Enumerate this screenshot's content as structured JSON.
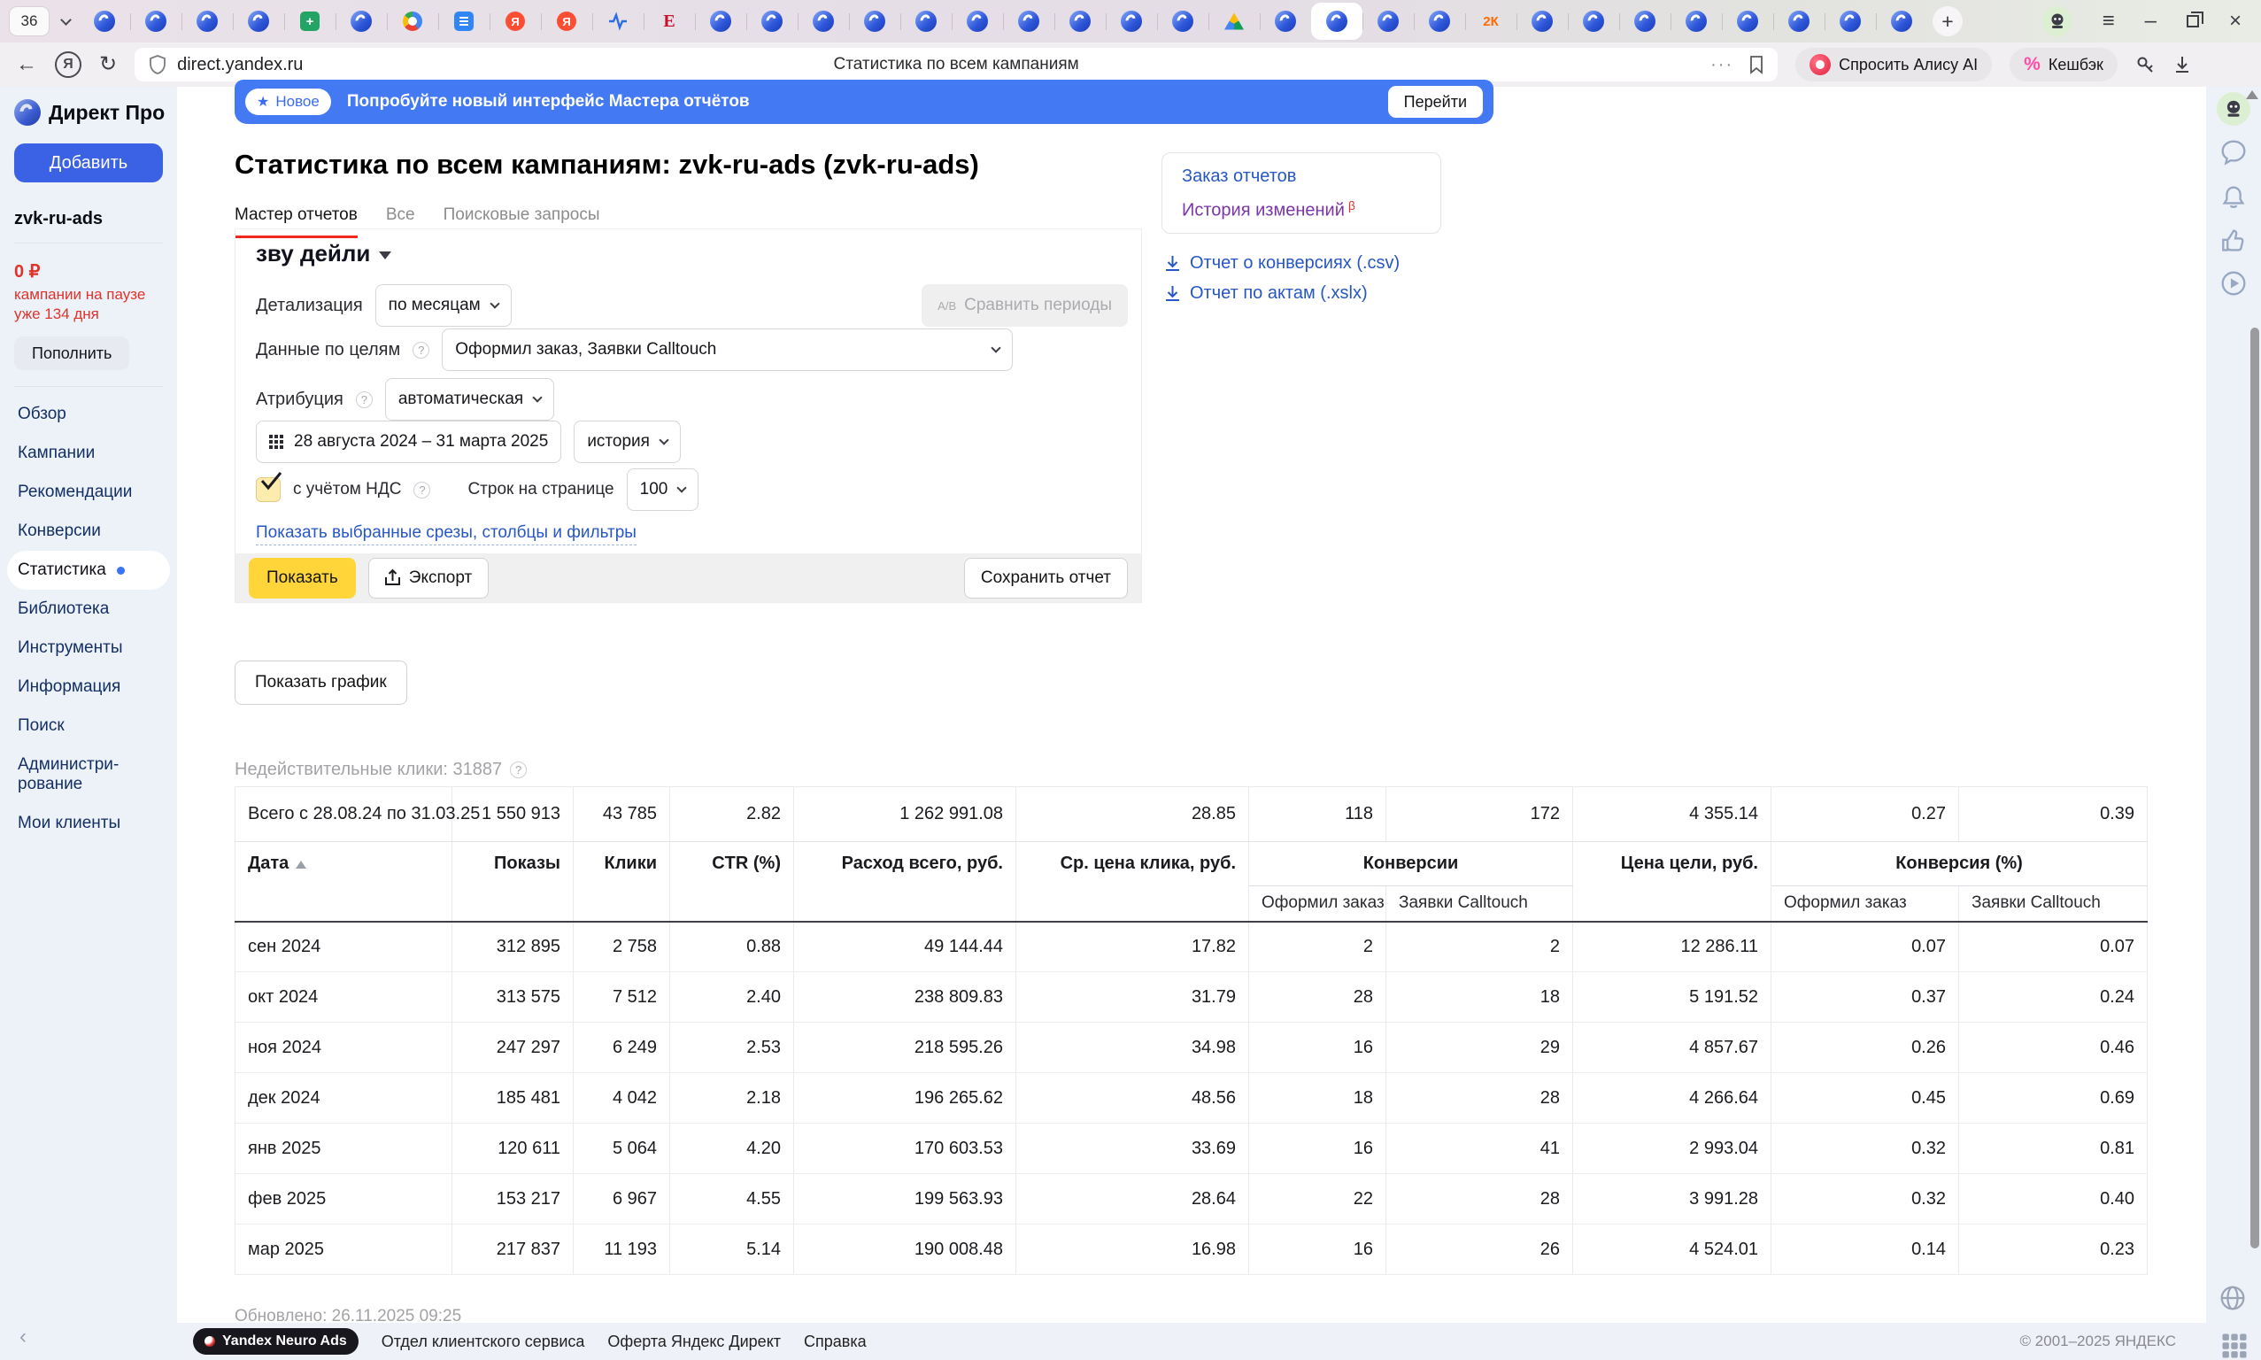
{
  "browser": {
    "tab_count": "36",
    "active_tab_index": 24,
    "tabs": [
      "yb",
      "yb",
      "yb",
      "yb",
      "sheets",
      "yb",
      "chrome",
      "docs",
      "ya",
      "ya",
      "pulse",
      "e",
      "yb",
      "yb",
      "yb",
      "yb",
      "yb",
      "yb",
      "yb",
      "yb",
      "yb",
      "yb",
      "drive",
      "yb",
      "yb",
      "yb",
      "yb",
      "2k",
      "yb",
      "yb",
      "yb",
      "yb",
      "yb",
      "yb",
      "yb",
      "yb"
    ],
    "url": "direct.yandex.ru",
    "page_title": "Статистика по всем кампаниям",
    "alice_button": "Спросить Алису AI",
    "cashback_button": "Кешбэк"
  },
  "sidebar": {
    "brand": "Директ Про",
    "add_button": "Добавить",
    "account": "zvk-ru-ads",
    "balance": "0 ₽",
    "balance_note": "кампании на паузе уже 134 дня",
    "topup_button": "Пополнить",
    "items": [
      {
        "key": "obzor",
        "label": "Обзор",
        "active": false
      },
      {
        "key": "kampanii",
        "label": "Кампании",
        "active": false
      },
      {
        "key": "rekomendacii",
        "label": "Рекомендации",
        "active": false
      },
      {
        "key": "konversii",
        "label": "Конверсии",
        "active": false
      },
      {
        "key": "statistika",
        "label": "Статистика",
        "active": true
      },
      {
        "key": "biblioteka",
        "label": "Библиотека",
        "active": false
      },
      {
        "key": "instrumenty",
        "label": "Инструменты",
        "active": false
      },
      {
        "key": "informaciya",
        "label": "Информация",
        "active": false
      },
      {
        "key": "poisk",
        "label": "Поиск",
        "active": false
      },
      {
        "key": "administrirovanie",
        "label": "Администри­рование",
        "active": false
      },
      {
        "key": "moi-klienty",
        "label": "Мои клиенты",
        "active": false
      }
    ]
  },
  "banner": {
    "badge": "Новое",
    "text": "Попробуйте новый интерфейс Мастера отчётов",
    "action": "Перейти"
  },
  "header": {
    "title": "Статистика по всем кампаниям: zvk-ru-ads (zvk-ru-ads)",
    "tabs": [
      {
        "label": "Мастер отчетов",
        "active": true
      },
      {
        "label": "Все",
        "active": false
      },
      {
        "label": "Поисковые запросы",
        "active": false
      }
    ]
  },
  "links_card": {
    "order_reports": "Заказ отчетов",
    "change_history": "История изменений",
    "beta": "β"
  },
  "downloads": [
    {
      "label": "Отчет о конверсиях (.csv)"
    },
    {
      "label": "Отчет по актам (.xslx)"
    }
  ],
  "report": {
    "name": "зву дейли",
    "detail_label": "Детализация",
    "detail_value": "по месяцам",
    "compare_button": "Сравнить периоды",
    "compare_icon": "A/B",
    "goals_label": "Данные по целям",
    "goals_value": "Оформил заказ, Заявки Calltouch",
    "attribution_label": "Атрибуция",
    "attribution_value": "автоматическая",
    "date_range": "28 августа 2024 – 31 марта 2025",
    "history_value": "история",
    "vat_label": "с учётом НДС",
    "rows_label": "Строк на странице",
    "rows_value": "100",
    "slices_link": "Показать выбранные срезы, столбцы и фильтры",
    "show_button": "Показать",
    "export_button": "Экспорт",
    "save_button": "Сохранить отчет",
    "show_chart_button": "Показать график"
  },
  "stats_note": "Недействительные клики: 31887",
  "table": {
    "total_label": "Всего с 28.08.24 по 31.03.25",
    "total": [
      "1 550 913",
      "43 785",
      "2.82",
      "1 262 991.08",
      "28.85",
      "118",
      "172",
      "4 355.14",
      "0.27",
      "0.39"
    ],
    "columns": [
      "Дата",
      "Показы",
      "Клики",
      "CTR (%)",
      "Расход всего, руб.",
      "Ср. цена клика, руб.",
      "Конверсии",
      "Цена цели, руб.",
      "Конверсия (%)"
    ],
    "subcolumns": [
      "Оформил заказ",
      "Заявки Calltouch",
      "Оформил заказ",
      "Заявки Calltouch"
    ],
    "rows": [
      {
        "date": "сен 2024",
        "values": [
          "312 895",
          "2 758",
          "0.88",
          "49 144.44",
          "17.82",
          "2",
          "2",
          "12 286.11",
          "0.07",
          "0.07"
        ]
      },
      {
        "date": "окт 2024",
        "values": [
          "313 575",
          "7 512",
          "2.40",
          "238 809.83",
          "31.79",
          "28",
          "18",
          "5 191.52",
          "0.37",
          "0.24"
        ]
      },
      {
        "date": "ноя 2024",
        "values": [
          "247 297",
          "6 249",
          "2.53",
          "218 595.26",
          "34.98",
          "16",
          "29",
          "4 857.67",
          "0.26",
          "0.46"
        ]
      },
      {
        "date": "дек 2024",
        "values": [
          "185 481",
          "4 042",
          "2.18",
          "196 265.62",
          "48.56",
          "18",
          "28",
          "4 266.64",
          "0.45",
          "0.69"
        ]
      },
      {
        "date": "янв 2025",
        "values": [
          "120 611",
          "5 064",
          "4.20",
          "170 603.53",
          "33.69",
          "16",
          "41",
          "2 993.04",
          "0.32",
          "0.81"
        ]
      },
      {
        "date": "фев 2025",
        "values": [
          "153 217",
          "6 967",
          "4.55",
          "199 563.93",
          "28.64",
          "22",
          "28",
          "3 991.28",
          "0.32",
          "0.40"
        ]
      },
      {
        "date": "мар 2025",
        "values": [
          "217 837",
          "11 193",
          "5.14",
          "190 008.48",
          "16.98",
          "16",
          "26",
          "4 524.01",
          "0.14",
          "0.23"
        ]
      }
    ],
    "updated": "Обновлено: 26.11.2025 09:25"
  },
  "footer": {
    "neuro_ads": "Yandex Neuro Ads",
    "links": [
      "Отдел клиентского сервиса",
      "Оферта Яндекс Директ",
      "Справка"
    ],
    "copyright": "© 2001–2025 ЯНДЕКС"
  },
  "colors": {
    "accent_blue": "#3b62e4",
    "banner_blue": "#4379f3",
    "link_blue": "#2757c4",
    "yandex_yellow": "#ffd53a",
    "alert_red": "#df332c",
    "purple_link": "#7c35a8"
  }
}
